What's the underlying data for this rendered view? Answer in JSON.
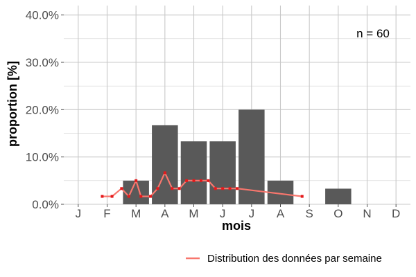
{
  "chart_data": {
    "type": "bar",
    "xlabel": "mois",
    "ylabel": "proportion [%]",
    "categories": [
      "J",
      "F",
      "M",
      "A",
      "M",
      "J",
      "J",
      "A",
      "S",
      "O",
      "N",
      "D"
    ],
    "values": [
      0,
      0,
      5.0,
      16.7,
      13.3,
      13.3,
      20.0,
      5.0,
      0,
      3.3,
      0,
      0
    ],
    "ylim": [
      0,
      42
    ],
    "yticks": [
      0,
      10,
      20,
      30,
      40
    ],
    "ytick_labels": [
      "0.0%",
      "10.0%",
      "20.0%",
      "30.0%",
      "40.0%"
    ],
    "annotation": "n = 60",
    "grid": true,
    "legend_position": "bottom-right",
    "weekly_series": {
      "name": "Distribution des données par semaine",
      "x": [
        1.83,
        2.17,
        2.5,
        2.75,
        3.0,
        3.17,
        3.5,
        3.75,
        4.0,
        4.25,
        4.5,
        4.75,
        5.0,
        5.25,
        5.5,
        5.75,
        6.0,
        6.25,
        6.5,
        8.75
      ],
      "y": [
        1.67,
        1.67,
        3.33,
        1.67,
        5.0,
        1.67,
        1.67,
        3.33,
        6.67,
        3.33,
        3.33,
        5.0,
        5.0,
        5.0,
        5.0,
        3.33,
        3.33,
        3.33,
        3.33,
        1.67
      ]
    },
    "colors": {
      "bars": "#595959",
      "line": "#f8766d",
      "points": "#e41a1c",
      "grid": "#c8c8c8"
    }
  }
}
